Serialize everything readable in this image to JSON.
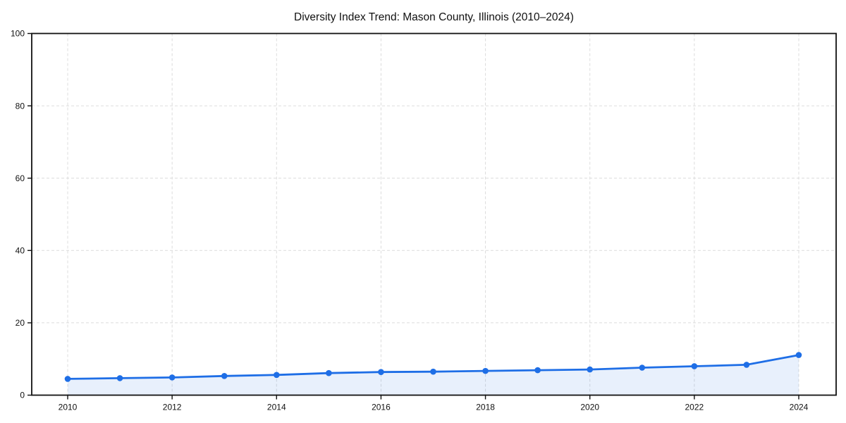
{
  "chart_data": {
    "type": "area",
    "title": "Diversity Index Trend: Mason County, Illinois (2010–2024)",
    "xlabel": "",
    "ylabel": "",
    "x": [
      2010,
      2011,
      2012,
      2013,
      2014,
      2015,
      2016,
      2017,
      2018,
      2019,
      2020,
      2021,
      2022,
      2023,
      2024
    ],
    "series": [
      {
        "name": "Diversity Index",
        "values": [
          4.5,
          4.7,
          4.9,
          5.3,
          5.6,
          6.1,
          6.4,
          6.5,
          6.7,
          6.9,
          7.1,
          7.6,
          8.0,
          8.4,
          11.1
        ]
      }
    ],
    "ylim": [
      0,
      100
    ],
    "yticks": [
      0,
      20,
      40,
      60,
      80,
      100
    ],
    "ytick_labels": [
      "0",
      "20",
      "40",
      "60",
      "80",
      "100"
    ],
    "xticks": [
      2010,
      2012,
      2014,
      2016,
      2018,
      2020,
      2022,
      2024
    ],
    "xtick_labels": [
      "2010",
      "2012",
      "2014",
      "2016",
      "2018",
      "2020",
      "2022",
      "2024"
    ],
    "grid": "dashed gridlines at horizontal yticks and vertical even-year xticks",
    "legend": "none",
    "markers": "filled circles on every year",
    "colors": {
      "line": "#1e6ee6",
      "marker": "#1e6ee6",
      "fill": "#1e6ee6",
      "fill_opacity": 0.1,
      "grid": "#dcdcdc",
      "axis": "#111111",
      "text": "#111111",
      "background": "#ffffff"
    }
  }
}
